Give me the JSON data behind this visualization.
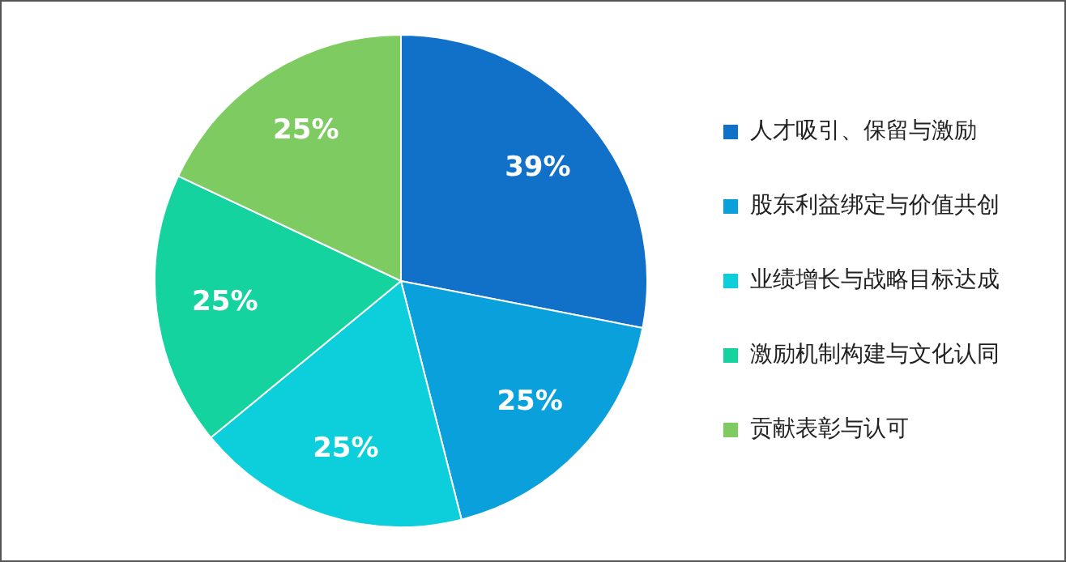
{
  "chart_data": {
    "type": "pie",
    "categories": [
      "人才吸引、保留与激励",
      "股东利益绑定与价值共创",
      "业绩增长与战略目标达成",
      "激励机制构建与文化认同",
      "贡献表彰与认可"
    ],
    "values": [
      39,
      25,
      25,
      25,
      25
    ],
    "colors": [
      "#1170c8",
      "#0aa0dc",
      "#0ccfdb",
      "#14d39e",
      "#7ecb62"
    ],
    "value_labels": [
      "39%",
      "25%",
      "25%",
      "25%",
      "25%"
    ],
    "legend": "right"
  }
}
